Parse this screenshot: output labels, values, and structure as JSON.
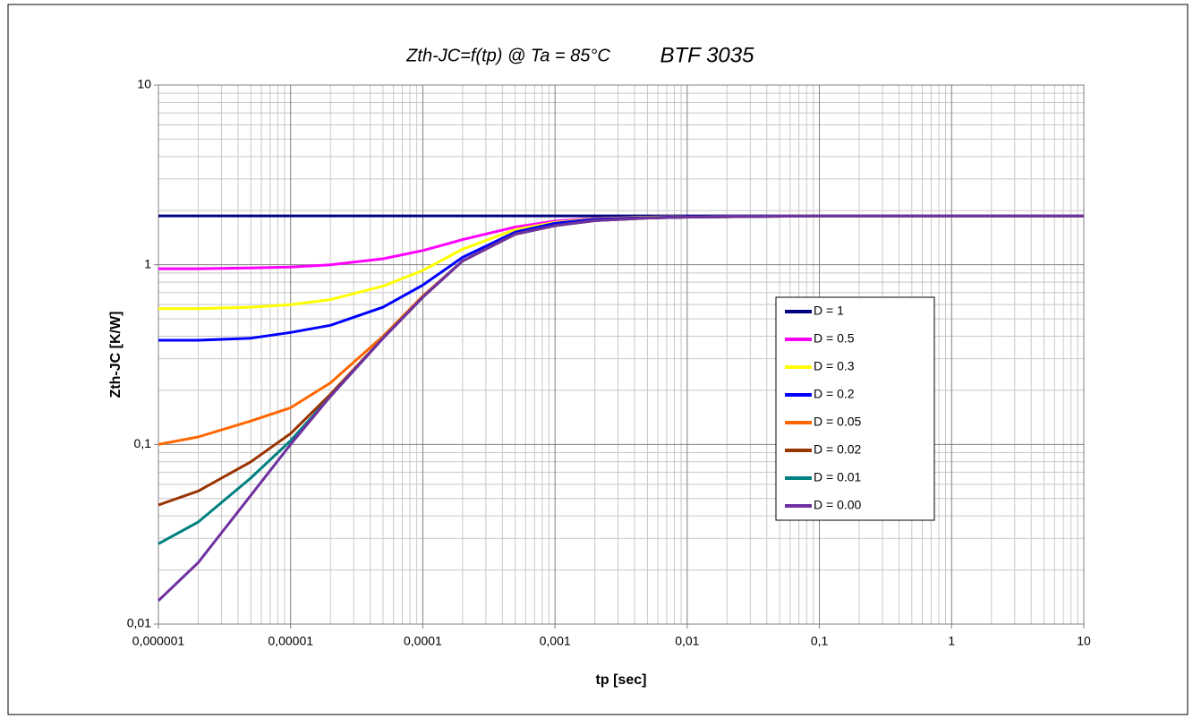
{
  "chart_data": {
    "type": "line",
    "title": "Zth-JC=f(tp) @ Ta = 85°C",
    "subtitle": "BTF 3035",
    "x_label": "tp [sec]",
    "y_label": "Zth-JC [K/W]",
    "x_scale": "log",
    "y_scale": "log",
    "grid": true,
    "minor_grid": true,
    "legend_position": "right",
    "xlim": [
      1e-06,
      10
    ],
    "ylim": [
      0.01,
      10
    ],
    "xticks": [
      {
        "value": 1e-06,
        "label": "0,000001"
      },
      {
        "value": 1e-05,
        "label": "0,00001"
      },
      {
        "value": 0.0001,
        "label": "0,0001"
      },
      {
        "value": 0.001,
        "label": "0,001"
      },
      {
        "value": 0.01,
        "label": "0,01"
      },
      {
        "value": 0.1,
        "label": "0,1"
      },
      1,
      10
    ],
    "yticks": [
      {
        "value": 0.01,
        "label": "0,01"
      },
      {
        "value": 0.1,
        "label": "0,1"
      },
      1,
      10
    ],
    "x": [
      1e-06,
      2e-06,
      5e-06,
      1e-05,
      2e-05,
      5e-05,
      0.0001,
      0.0002,
      0.0005,
      0.001,
      0.002,
      0.005,
      0.01,
      0.1,
      1,
      10
    ],
    "series": [
      {
        "name": "D = 1",
        "color": "#000080",
        "values": [
          1.87,
          1.87,
          1.87,
          1.87,
          1.87,
          1.87,
          1.87,
          1.87,
          1.87,
          1.87,
          1.87,
          1.87,
          1.87,
          1.87,
          1.87,
          1.87
        ]
      },
      {
        "name": "D = 0.5",
        "color": "#ff00ff",
        "values": [
          0.95,
          0.95,
          0.96,
          0.97,
          1.0,
          1.08,
          1.2,
          1.38,
          1.62,
          1.75,
          1.81,
          1.84,
          1.85,
          1.87,
          1.87,
          1.87
        ]
      },
      {
        "name": "D = 0.3",
        "color": "#ffff00",
        "values": [
          0.57,
          0.57,
          0.58,
          0.6,
          0.64,
          0.76,
          0.93,
          1.22,
          1.57,
          1.72,
          1.8,
          1.84,
          1.85,
          1.87,
          1.87,
          1.87
        ]
      },
      {
        "name": "D = 0.2",
        "color": "#0000ff",
        "values": [
          0.38,
          0.38,
          0.39,
          0.42,
          0.46,
          0.58,
          0.77,
          1.1,
          1.52,
          1.7,
          1.79,
          1.83,
          1.85,
          1.87,
          1.87,
          1.87
        ]
      },
      {
        "name": "D = 0.05",
        "color": "#ff6600",
        "values": [
          0.1,
          0.11,
          0.135,
          0.16,
          0.22,
          0.4,
          0.67,
          1.05,
          1.48,
          1.65,
          1.76,
          1.82,
          1.84,
          1.87,
          1.87,
          1.87
        ]
      },
      {
        "name": "D = 0.02",
        "color": "#993300",
        "values": [
          0.046,
          0.055,
          0.08,
          0.115,
          0.19,
          0.39,
          0.66,
          1.05,
          1.48,
          1.65,
          1.76,
          1.82,
          1.84,
          1.87,
          1.87,
          1.87
        ]
      },
      {
        "name": "D = 0.01",
        "color": "#008080",
        "values": [
          0.028,
          0.037,
          0.065,
          0.105,
          0.185,
          0.39,
          0.66,
          1.05,
          1.48,
          1.65,
          1.76,
          1.82,
          1.84,
          1.87,
          1.87,
          1.87
        ]
      },
      {
        "name": "D = 0.00",
        "color": "#7030a0",
        "values": [
          0.0135,
          0.022,
          0.052,
          0.1,
          0.185,
          0.39,
          0.66,
          1.05,
          1.48,
          1.65,
          1.76,
          1.82,
          1.84,
          1.87,
          1.87,
          1.87
        ]
      }
    ]
  }
}
